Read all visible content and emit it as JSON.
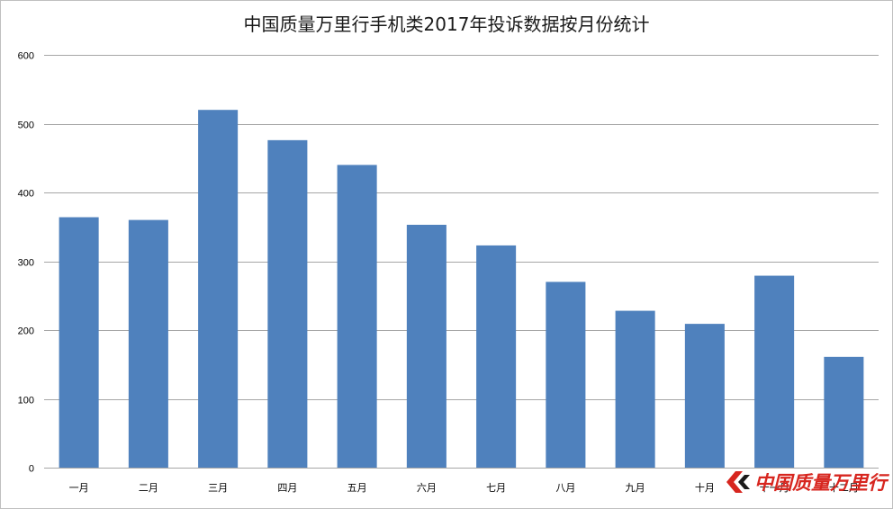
{
  "chart_data": {
    "type": "bar",
    "title": "中国质量万里行手机类2017年投诉数据按月份统计",
    "categories": [
      "一月",
      "二月",
      "三月",
      "四月",
      "五月",
      "六月",
      "七月",
      "八月",
      "九月",
      "十月",
      "十一月",
      "十二月"
    ],
    "values": [
      364,
      360,
      520,
      476,
      440,
      353,
      323,
      270,
      228,
      209,
      279,
      161
    ],
    "ylim": [
      0,
      600
    ],
    "yticks": [
      0,
      100,
      200,
      300,
      400,
      500,
      600
    ],
    "grid": true,
    "bar_color": "#4f81bd",
    "grid_color": "#a6a6a6"
  },
  "watermark": {
    "text": "中国质量万里行",
    "color": "#d7261f",
    "icon": "brand-chevron-icon"
  }
}
